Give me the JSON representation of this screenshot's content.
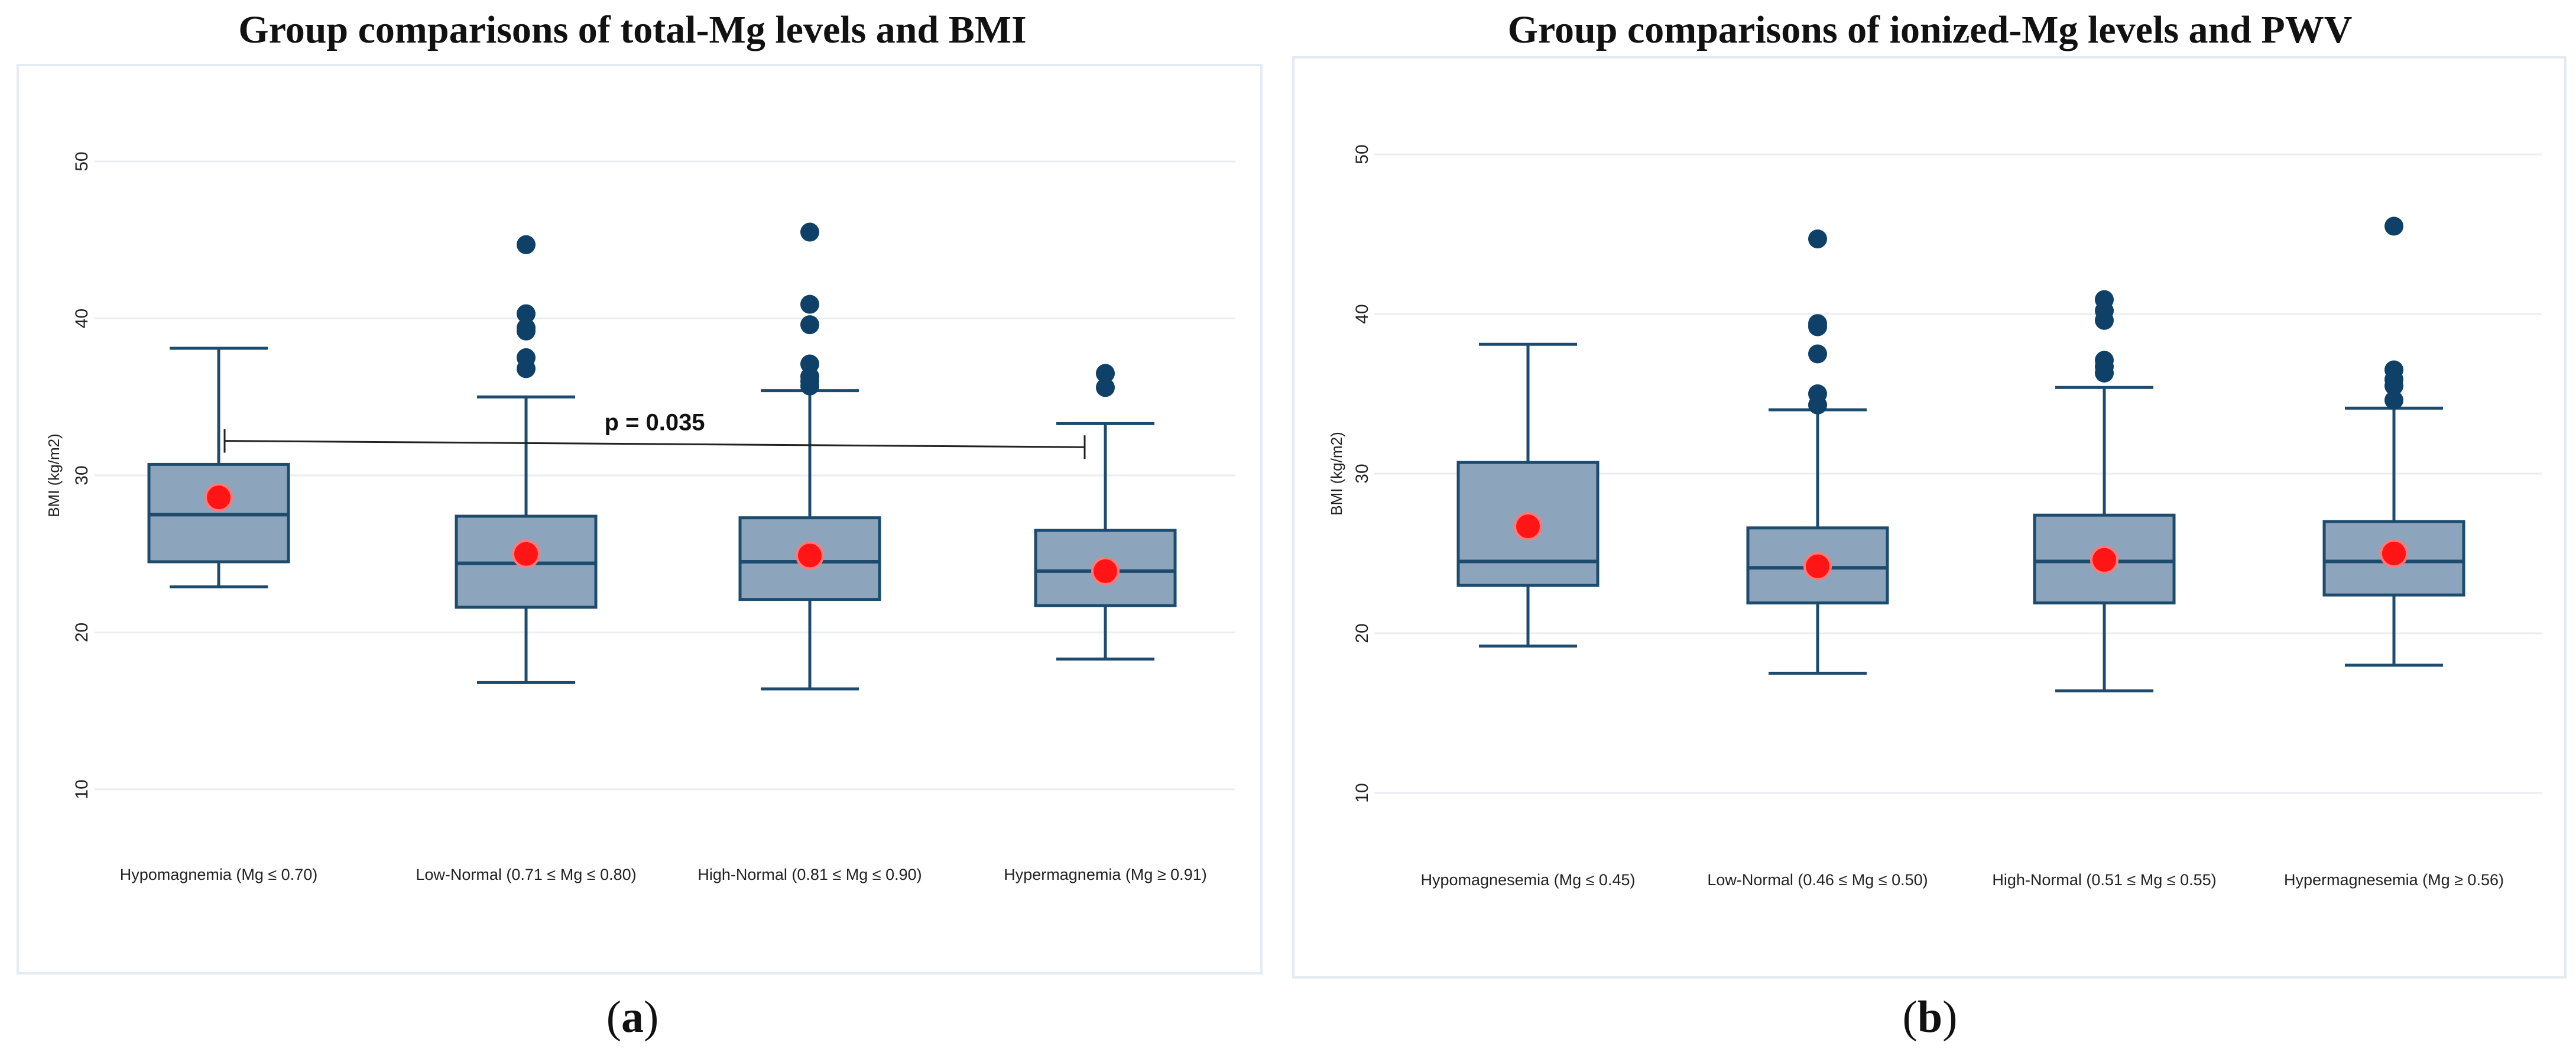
{
  "panels": [
    {
      "title": "Group comparisons of total-Mg levels and BMI",
      "letter_open": "(",
      "letter": "a",
      "letter_close": ")"
    },
    {
      "title": "Group comparisons of ionized-Mg levels and PWV",
      "letter_open": "(",
      "letter": "b",
      "letter_close": ")"
    }
  ],
  "colors": {
    "box_fill": "#8ca5bc",
    "box_stroke": "#1d4b6e",
    "outlier": "#0f4068",
    "mean": "#ff1515",
    "mean_edge": "#ff7a7a",
    "grid": "#e9eef2"
  },
  "chart_data": [
    {
      "type": "box",
      "title": "Group comparisons of total-Mg levels and BMI",
      "ylabel": "BMI (kg/m2)",
      "xlabel": "",
      "ylim": [
        8,
        52
      ],
      "yticks": [
        10,
        20,
        30,
        40,
        50
      ],
      "grid": true,
      "categories": [
        "Hypomagnemia (Mg ≤ 0.70)",
        "Low-Normal (0.71 ≤ Mg ≤ 0.80)",
        "High-Normal (0.81 ≤ Mg ≤ 0.90)",
        "Hypermagnemia (Mg ≥ 0.91)"
      ],
      "boxes": [
        {
          "whisker_low": 22.9,
          "q1": 24.5,
          "median": 27.5,
          "q3": 30.7,
          "whisker_high": 38.1,
          "mean": 28.6,
          "outliers": []
        },
        {
          "whisker_low": 16.8,
          "q1": 21.6,
          "median": 24.4,
          "q3": 27.4,
          "whisker_high": 35.0,
          "mean": 25.0,
          "outliers": [
            36.8,
            37.5,
            39.2,
            39.4,
            40.3,
            44.7
          ]
        },
        {
          "whisker_low": 16.4,
          "q1": 22.1,
          "median": 24.5,
          "q3": 27.3,
          "whisker_high": 35.4,
          "mean": 24.9,
          "outliers": [
            35.7,
            36.0,
            36.3,
            37.1,
            39.6,
            40.9,
            45.5
          ]
        },
        {
          "whisker_low": 18.3,
          "q1": 21.7,
          "median": 23.9,
          "q3": 26.5,
          "whisker_high": 33.3,
          "mean": 23.9,
          "outliers": [
            35.6,
            36.5
          ]
        }
      ],
      "annotation": {
        "text": "p = 0.035",
        "from_group": 0,
        "to_group": 3,
        "y_start": 32.2,
        "y_end": 31.8
      }
    },
    {
      "type": "box",
      "title": "Group comparisons of ionized-Mg levels and PWV",
      "ylabel": "BMI (kg/m2)",
      "xlabel": "",
      "ylim": [
        8,
        52
      ],
      "yticks": [
        10,
        20,
        30,
        40,
        50
      ],
      "grid": true,
      "categories": [
        "Hypomagnesemia (Mg ≤ 0.45)",
        "Low-Normal (0.46 ≤ Mg ≤ 0.50)",
        "High-Normal (0.51 ≤ Mg ≤ 0.55)",
        "Hypermagnesemia (Mg ≥ 0.56)"
      ],
      "boxes": [
        {
          "whisker_low": 19.2,
          "q1": 23.0,
          "median": 24.5,
          "q3": 30.7,
          "whisker_high": 38.1,
          "mean": 26.7,
          "outliers": []
        },
        {
          "whisker_low": 17.5,
          "q1": 21.9,
          "median": 24.1,
          "q3": 26.6,
          "whisker_high": 34.0,
          "mean": 24.2,
          "outliers": [
            34.3,
            35.0,
            37.5,
            39.2,
            39.4,
            44.7
          ]
        },
        {
          "whisker_low": 16.4,
          "q1": 21.9,
          "median": 24.5,
          "q3": 27.4,
          "whisker_high": 35.4,
          "mean": 24.6,
          "outliers": [
            36.3,
            36.7,
            37.1,
            39.6,
            40.2,
            40.9
          ]
        },
        {
          "whisker_low": 18.0,
          "q1": 22.4,
          "median": 24.5,
          "q3": 27.0,
          "whisker_high": 34.1,
          "mean": 25.0,
          "outliers": [
            34.6,
            35.5,
            35.9,
            36.5,
            45.5
          ]
        }
      ],
      "annotation": null
    }
  ]
}
